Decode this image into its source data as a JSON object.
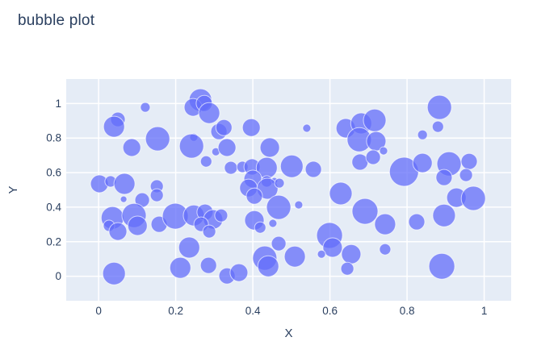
{
  "title": "bubble plot",
  "colors": {
    "paper_bg": "#ffffff",
    "plot_bg": "#e5ecf6",
    "grid": "#ffffff",
    "text": "#2a3f5f",
    "bubble_fill": "#636efa",
    "bubble_stroke": "#ffffff"
  },
  "chart_data": {
    "type": "scatter",
    "mode": "bubble-markers",
    "title": "bubble plot",
    "xlabel": "X",
    "ylabel": "Y",
    "x_ticks": [
      0,
      0.2,
      0.4,
      0.6,
      0.8,
      1
    ],
    "y_ticks": [
      0,
      0.2,
      0.4,
      0.6,
      0.8,
      1
    ],
    "xlim": [
      -0.084,
      1.07
    ],
    "ylim": [
      -0.142,
      1.142
    ],
    "grid": true,
    "legend": false,
    "marker_opacity": 0.75,
    "points_format": [
      "x",
      "y",
      "radius_px"
    ],
    "points": [
      [
        0.121,
        0.978,
        6
      ],
      [
        0.05,
        0.908,
        9
      ],
      [
        0.04,
        0.866,
        13
      ],
      [
        0.086,
        0.745,
        11
      ],
      [
        0.153,
        0.796,
        15
      ],
      [
        0.264,
        1.02,
        14
      ],
      [
        0.245,
        0.978,
        11
      ],
      [
        0.274,
        1.001,
        10
      ],
      [
        0.287,
        0.945,
        13
      ],
      [
        0.312,
        0.838,
        10
      ],
      [
        0.247,
        0.805,
        5
      ],
      [
        0.241,
        0.754,
        15
      ],
      [
        0.304,
        0.721,
        5
      ],
      [
        0.279,
        0.665,
        7
      ],
      [
        0.325,
        0.861,
        10
      ],
      [
        0.396,
        0.861,
        11
      ],
      [
        0.333,
        0.745,
        11
      ],
      [
        0.444,
        0.745,
        12
      ],
      [
        0.54,
        0.857,
        5
      ],
      [
        0.343,
        0.628,
        8
      ],
      [
        0.373,
        0.633,
        7
      ],
      [
        0.398,
        0.633,
        10
      ],
      [
        0.436,
        0.628,
        13
      ],
      [
        0.501,
        0.637,
        14
      ],
      [
        0.557,
        0.619,
        10
      ],
      [
        0.4,
        0.563,
        11
      ],
      [
        0.436,
        0.549,
        7
      ],
      [
        0.456,
        0.553,
        4
      ],
      [
        0.389,
        0.511,
        11
      ],
      [
        0.438,
        0.507,
        13
      ],
      [
        0.469,
        0.539,
        6
      ],
      [
        0.404,
        0.464,
        10
      ],
      [
        0.641,
        0.857,
        12
      ],
      [
        0.681,
        0.885,
        13
      ],
      [
        0.716,
        0.903,
        14
      ],
      [
        0.676,
        0.791,
        15
      ],
      [
        0.72,
        0.782,
        12
      ],
      [
        0.739,
        0.726,
        5
      ],
      [
        0.678,
        0.661,
        10
      ],
      [
        0.712,
        0.689,
        9
      ],
      [
        0.84,
        0.819,
        6
      ],
      [
        0.884,
        0.978,
        15
      ],
      [
        0.88,
        0.866,
        7
      ],
      [
        0.792,
        0.605,
        18
      ],
      [
        0.84,
        0.656,
        12
      ],
      [
        0.909,
        0.651,
        15
      ],
      [
        0.961,
        0.665,
        10
      ],
      [
        0.896,
        0.572,
        10
      ],
      [
        0.953,
        0.586,
        8
      ],
      [
        0.928,
        0.455,
        12
      ],
      [
        0.972,
        0.451,
        15
      ],
      [
        0.628,
        0.479,
        14
      ],
      [
        0.691,
        0.376,
        16
      ],
      [
        0.743,
        0.301,
        13
      ],
      [
        0.825,
        0.315,
        10
      ],
      [
        0.896,
        0.352,
        14
      ],
      [
        0.743,
        0.156,
        7
      ],
      [
        0.89,
        0.058,
        16
      ],
      [
        0.599,
        0.236,
        16
      ],
      [
        0.607,
        0.166,
        12
      ],
      [
        0.655,
        0.128,
        12
      ],
      [
        0.578,
        0.128,
        5
      ],
      [
        0.645,
        0.044,
        8
      ],
      [
        0.467,
        0.399,
        15
      ],
      [
        0.519,
        0.413,
        5
      ],
      [
        0.404,
        0.324,
        12
      ],
      [
        0.452,
        0.306,
        5
      ],
      [
        0.419,
        0.282,
        7
      ],
      [
        0.467,
        0.189,
        9
      ],
      [
        0.431,
        0.105,
        15
      ],
      [
        0.44,
        0.058,
        13
      ],
      [
        0.509,
        0.114,
        13
      ],
      [
        0.333,
        0.002,
        10
      ],
      [
        0.364,
        0.021,
        11
      ],
      [
        0.04,
        0.016,
        14
      ],
      [
        0.212,
        0.049,
        13
      ],
      [
        0.235,
        0.166,
        13
      ],
      [
        0.285,
        0.063,
        10
      ],
      [
        0.002,
        0.535,
        11
      ],
      [
        0.031,
        0.549,
        7
      ],
      [
        0.067,
        0.535,
        13
      ],
      [
        0.065,
        0.446,
        4
      ],
      [
        0.113,
        0.441,
        9
      ],
      [
        0.151,
        0.521,
        8
      ],
      [
        0.151,
        0.469,
        8
      ],
      [
        0.036,
        0.338,
        14
      ],
      [
        0.027,
        0.292,
        7
      ],
      [
        0.092,
        0.352,
        15
      ],
      [
        0.101,
        0.292,
        12
      ],
      [
        0.05,
        0.259,
        11
      ],
      [
        0.157,
        0.301,
        10
      ],
      [
        0.199,
        0.348,
        16
      ],
      [
        0.247,
        0.352,
        13
      ],
      [
        0.276,
        0.371,
        10
      ],
      [
        0.297,
        0.329,
        12
      ],
      [
        0.266,
        0.301,
        9
      ],
      [
        0.318,
        0.352,
        8
      ],
      [
        0.287,
        0.259,
        8
      ]
    ]
  }
}
